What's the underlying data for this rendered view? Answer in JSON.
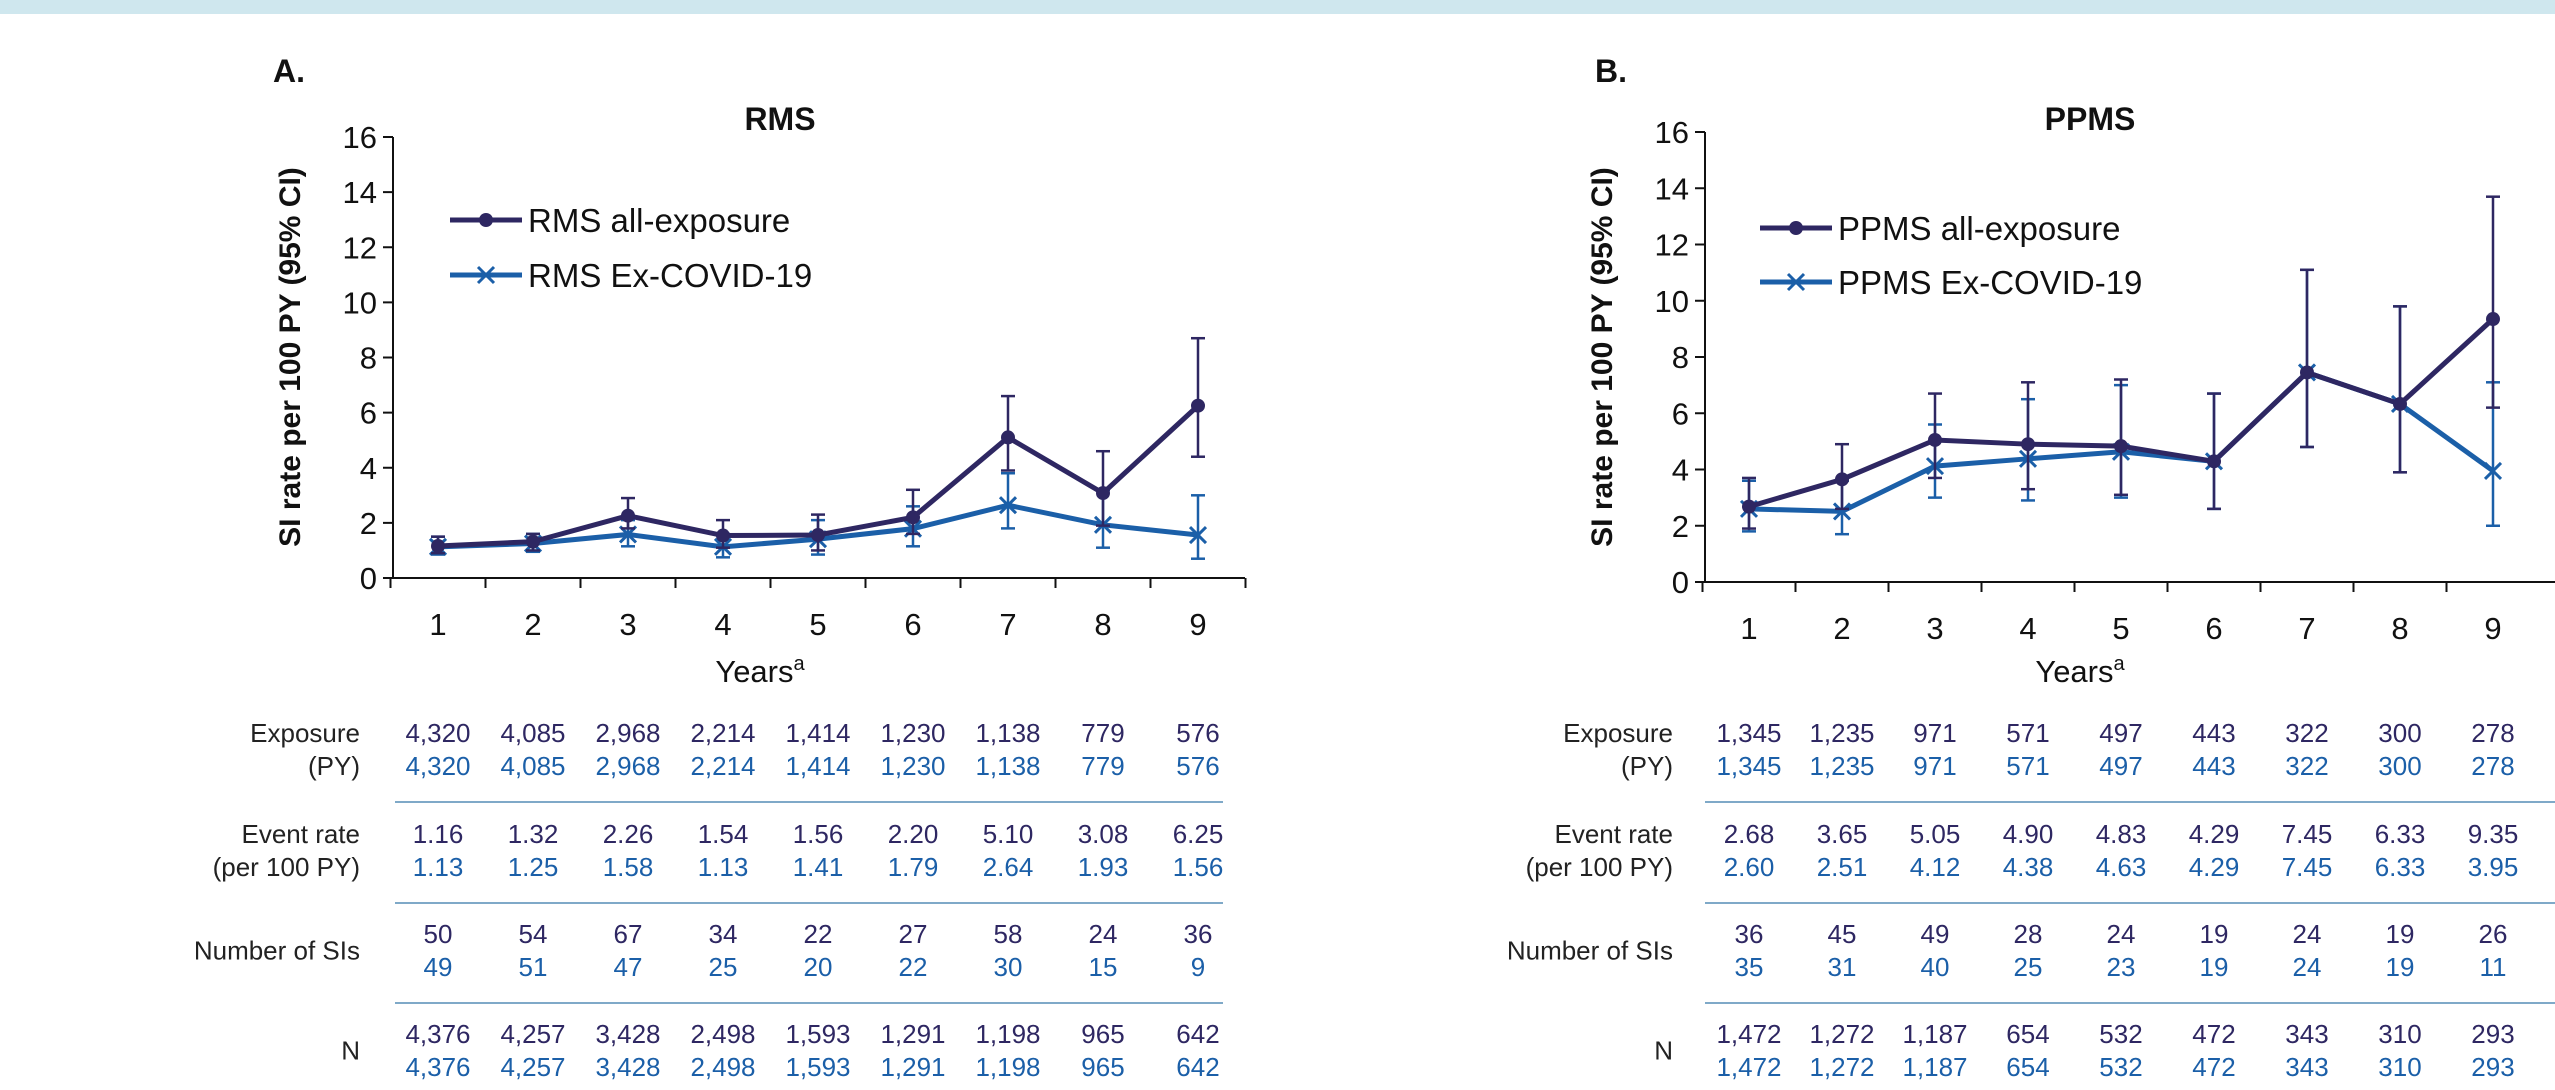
{
  "colors": {
    "top_bar": "#cfe7ee",
    "all_exposure": "#2e2762",
    "ex_covid": "#1b5fa8",
    "separator": "#7fa9c8",
    "axis": "#111111"
  },
  "chart_data": [
    {
      "type": "line",
      "panel_label": "A.",
      "title": "RMS",
      "xlabel": "Years",
      "xlabel_sup": "a",
      "ylabel": "SI rate per 100 PY (95% CI)",
      "ylim": [
        0,
        16
      ],
      "yticks": [
        "0",
        "2",
        "4",
        "6",
        "8",
        "10",
        "12",
        "14",
        "16"
      ],
      "x": [
        "1",
        "2",
        "3",
        "4",
        "5",
        "6",
        "7",
        "8",
        "9"
      ],
      "legend_position": "top-left",
      "series": [
        {
          "name": "RMS all-exposure",
          "marker": "circle",
          "color": "#2e2762",
          "values": [
            1.16,
            1.32,
            2.26,
            1.54,
            1.56,
            2.2,
            5.1,
            3.08,
            6.25
          ],
          "ci_low": [
            0.9,
            1.0,
            1.8,
            1.1,
            1.0,
            1.6,
            3.9,
            1.9,
            4.4
          ],
          "ci_high": [
            1.5,
            1.6,
            2.9,
            2.1,
            2.3,
            3.2,
            6.6,
            4.6,
            8.7
          ]
        },
        {
          "name": "RMS Ex-COVID-19",
          "marker": "x",
          "color": "#1b5fa8",
          "values": [
            1.13,
            1.25,
            1.58,
            1.13,
            1.41,
            1.79,
            2.64,
            1.93,
            1.56
          ],
          "ci_low": [
            0.85,
            0.95,
            1.15,
            0.75,
            0.85,
            1.15,
            1.8,
            1.1,
            0.7
          ],
          "ci_high": [
            1.5,
            1.6,
            2.1,
            1.6,
            2.1,
            2.6,
            3.8,
            3.2,
            3.0
          ]
        }
      ],
      "table": {
        "rows": [
          {
            "label": [
              "Exposure",
              "(PY)"
            ],
            "all": [
              "4,320",
              "4,085",
              "2,968",
              "2,214",
              "1,414",
              "1,230",
              "1,138",
              "779",
              "576"
            ],
            "ex": [
              "4,320",
              "4,085",
              "2,968",
              "2,214",
              "1,414",
              "1,230",
              "1,138",
              "779",
              "576"
            ]
          },
          {
            "label": [
              "Event rate",
              "(per 100 PY)"
            ],
            "all": [
              "1.16",
              "1.32",
              "2.26",
              "1.54",
              "1.56",
              "2.20",
              "5.10",
              "3.08",
              "6.25"
            ],
            "ex": [
              "1.13",
              "1.25",
              "1.58",
              "1.13",
              "1.41",
              "1.79",
              "2.64",
              "1.93",
              "1.56"
            ]
          },
          {
            "label": [
              "Number of SIs"
            ],
            "all": [
              "50",
              "54",
              "67",
              "34",
              "22",
              "27",
              "58",
              "24",
              "36"
            ],
            "ex": [
              "49",
              "51",
              "47",
              "25",
              "20",
              "22",
              "30",
              "15",
              "9"
            ]
          },
          {
            "label": [
              "N"
            ],
            "all": [
              "4,376",
              "4,257",
              "3,428",
              "2,498",
              "1,593",
              "1,291",
              "1,198",
              "965",
              "642"
            ],
            "ex": [
              "4,376",
              "4,257",
              "3,428",
              "2,498",
              "1,593",
              "1,291",
              "1,198",
              "965",
              "642"
            ]
          }
        ]
      }
    },
    {
      "type": "line",
      "panel_label": "B.",
      "title": "PPMS",
      "xlabel": "Years",
      "xlabel_sup": "a",
      "ylabel": "SI rate per 100 PY (95% CI)",
      "ylim": [
        0,
        16
      ],
      "yticks": [
        "0",
        "2",
        "4",
        "6",
        "8",
        "10",
        "12",
        "14",
        "16"
      ],
      "x": [
        "1",
        "2",
        "3",
        "4",
        "5",
        "6",
        "7",
        "8",
        "9"
      ],
      "legend_position": "top-left",
      "series": [
        {
          "name": "PPMS all-exposure",
          "marker": "circle",
          "color": "#2e2762",
          "values": [
            2.68,
            3.65,
            5.05,
            4.9,
            4.83,
            4.29,
            7.45,
            6.33,
            9.35
          ],
          "ci_low": [
            1.9,
            2.6,
            3.7,
            3.3,
            3.1,
            2.6,
            4.8,
            3.9,
            6.2
          ],
          "ci_high": [
            3.7,
            4.9,
            6.7,
            7.1,
            7.2,
            6.7,
            11.1,
            9.8,
            13.7
          ]
        },
        {
          "name": "PPMS Ex-COVID-19",
          "marker": "x",
          "color": "#1b5fa8",
          "values": [
            2.6,
            2.51,
            4.12,
            4.38,
            4.63,
            4.29,
            7.45,
            6.33,
            3.95
          ],
          "ci_low": [
            1.8,
            1.7,
            3.0,
            2.9,
            3.0,
            2.6,
            4.8,
            3.9,
            2.0
          ],
          "ci_high": [
            3.6,
            3.6,
            5.6,
            6.5,
            7.0,
            6.7,
            11.1,
            9.8,
            7.1
          ]
        }
      ],
      "table": {
        "rows": [
          {
            "label": [
              "Exposure",
              "(PY)"
            ],
            "all": [
              "1,345",
              "1,235",
              "971",
              "571",
              "497",
              "443",
              "322",
              "300",
              "278"
            ],
            "ex": [
              "1,345",
              "1,235",
              "971",
              "571",
              "497",
              "443",
              "322",
              "300",
              "278"
            ]
          },
          {
            "label": [
              "Event rate",
              "(per 100 PY)"
            ],
            "all": [
              "2.68",
              "3.65",
              "5.05",
              "4.90",
              "4.83",
              "4.29",
              "7.45",
              "6.33",
              "9.35"
            ],
            "ex": [
              "2.60",
              "2.51",
              "4.12",
              "4.38",
              "4.63",
              "4.29",
              "7.45",
              "6.33",
              "3.95"
            ]
          },
          {
            "label": [
              "Number of SIs"
            ],
            "all": [
              "36",
              "45",
              "49",
              "28",
              "24",
              "19",
              "24",
              "19",
              "26"
            ],
            "ex": [
              "35",
              "31",
              "40",
              "25",
              "23",
              "19",
              "24",
              "19",
              "11"
            ]
          },
          {
            "label": [
              "N"
            ],
            "all": [
              "1,472",
              "1,272",
              "1,187",
              "654",
              "532",
              "472",
              "343",
              "310",
              "293"
            ],
            "ex": [
              "1,472",
              "1,272",
              "1,187",
              "654",
              "532",
              "472",
              "343",
              "310",
              "293"
            ]
          }
        ]
      }
    }
  ]
}
